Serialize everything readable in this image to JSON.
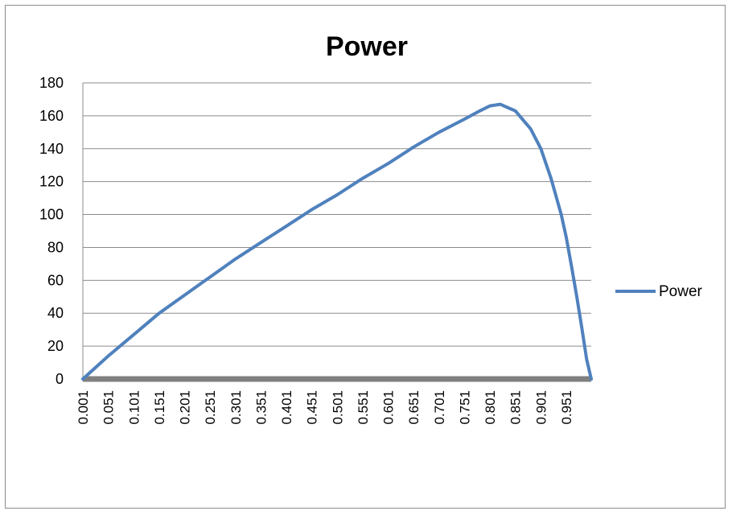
{
  "chart_data": {
    "type": "line",
    "title": "Power",
    "xlabel": "",
    "ylabel": "",
    "ylim": [
      0,
      180
    ],
    "yticks": [
      "0",
      "20",
      "40",
      "60",
      "80",
      "100",
      "120",
      "140",
      "160",
      "180"
    ],
    "xtick_labels": [
      "0.001",
      "0.051",
      "0.101",
      "0.151",
      "0.201",
      "0.251",
      "0.301",
      "0.351",
      "0.401",
      "0.451",
      "0.501",
      "0.551",
      "0.601",
      "0.651",
      "0.701",
      "0.751",
      "0.801",
      "0.851",
      "0.901",
      "0.951"
    ],
    "xlim": [
      0.001,
      1.0
    ],
    "grid": "horizontal",
    "legend": "right",
    "series": [
      {
        "name": "Power",
        "color": "#4F81BD",
        "x": [
          0.001,
          0.051,
          0.101,
          0.151,
          0.201,
          0.251,
          0.301,
          0.351,
          0.401,
          0.451,
          0.501,
          0.551,
          0.601,
          0.651,
          0.701,
          0.751,
          0.781,
          0.801,
          0.821,
          0.851,
          0.881,
          0.901,
          0.921,
          0.941,
          0.951,
          0.961,
          0.971,
          0.981,
          0.991,
          1.0
        ],
        "values": [
          0,
          14,
          27,
          40,
          51,
          62,
          73,
          83,
          93,
          103,
          112,
          122,
          131,
          141,
          150,
          158,
          163,
          166,
          167,
          163,
          152,
          140,
          122,
          100,
          86,
          69,
          51,
          32,
          12,
          0
        ]
      }
    ]
  }
}
